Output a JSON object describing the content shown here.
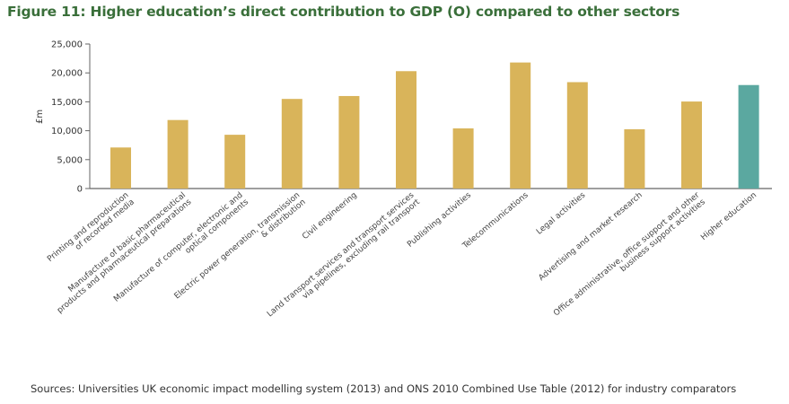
{
  "chart_data": {
    "type": "bar",
    "title": "Figure 11: Higher education’s direct contribution to GDP (O) compared to other sectors",
    "xlabel": "",
    "ylabel": "£m",
    "ylim": [
      0,
      25000
    ],
    "yticks": [
      "0",
      "5,000",
      "10,000",
      "15,000",
      "20,000",
      "25,000"
    ],
    "grid": false,
    "categories": [
      [
        "Printing and reproduction",
        "of recorded media"
      ],
      [
        "Manufacture of basic pharmaceutical",
        "products and pharmaceutical preparations"
      ],
      [
        "Manufacture of computer, electronic and",
        "optical components"
      ],
      [
        "Electric power generation, transmission",
        "& distribution"
      ],
      [
        "Civil engineering"
      ],
      [
        "Land transport services and transport services",
        "via pipelines, excluding rail transport"
      ],
      [
        "Publishing activities"
      ],
      [
        "Telecommunications"
      ],
      [
        "Legal activities"
      ],
      [
        "Advertising and market research"
      ],
      [
        "Office administrative, office support and other",
        "business support activities"
      ],
      [
        "Higher education"
      ]
    ],
    "values": [
      7100,
      11850,
      9300,
      15500,
      16000,
      20300,
      10400,
      21800,
      18400,
      10250,
      15050,
      17900
    ],
    "colors": {
      "default": "#d9b45a",
      "highlight": "#5ba8a0",
      "highlight_category": "Higher education"
    },
    "source": "Sources: Universities UK economic impact modelling system (2013) and ONS 2010 Combined Use Table (2012) for industry comparators"
  }
}
